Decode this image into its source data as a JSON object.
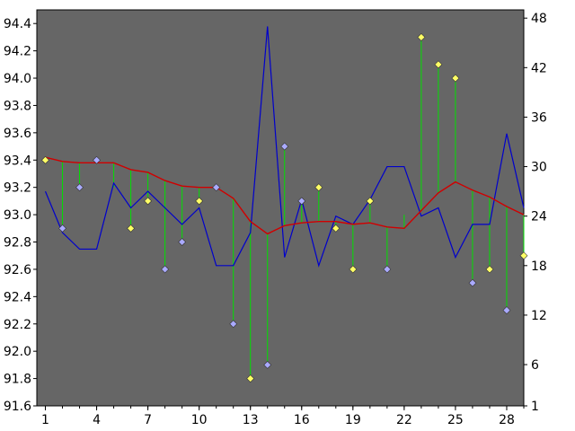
{
  "chart_data": {
    "type": "line",
    "title": "",
    "xlabel": "",
    "ylabel": "",
    "x": [
      1,
      2,
      3,
      4,
      5,
      6,
      7,
      8,
      9,
      10,
      11,
      12,
      13,
      14,
      15,
      16,
      17,
      18,
      19,
      20,
      21,
      22,
      23,
      24,
      25,
      26,
      27,
      28,
      29
    ],
    "xlim": [
      0.5,
      29
    ],
    "x_ticks": [
      1,
      4,
      7,
      10,
      13,
      16,
      19,
      22,
      25,
      28
    ],
    "x_tick_labels": [
      "1",
      "4",
      "7",
      "10",
      "13",
      "16",
      "19",
      "22",
      "25",
      "28"
    ],
    "y_left": {
      "lim": [
        91.6,
        94.5
      ],
      "ticks": [
        91.6,
        91.8,
        92.0,
        92.2,
        92.4,
        92.6,
        92.8,
        93.0,
        93.2,
        93.4,
        93.6,
        93.8,
        94.0,
        94.2,
        94.4
      ],
      "tick_labels": [
        "91.6",
        "91.8",
        "92.0",
        "92.2",
        "92.4",
        "92.6",
        "92.8",
        "93.0",
        "93.2",
        "93.4",
        "93.6",
        "93.8",
        "94.0",
        "94.2",
        "94.4"
      ]
    },
    "y_right": {
      "lim": [
        1,
        49
      ],
      "ticks": [
        1,
        6,
        12,
        18,
        24,
        30,
        36,
        42,
        48
      ],
      "tick_labels": [
        "1",
        "6",
        "12",
        "18",
        "24",
        "30",
        "36",
        "42",
        "48"
      ]
    },
    "grid": false,
    "colors": {
      "plot_bg": "#666666",
      "blue_line": "#0000cc",
      "red_line": "#d00000",
      "green_stem": "#00e000",
      "yellow_marker": "#ffff66",
      "violet_marker": "#aaaaff",
      "marker_edge": "#333333"
    },
    "series": [
      {
        "axis": "right",
        "render": "line",
        "values": [
          27,
          22,
          20,
          20,
          28,
          25,
          27,
          25,
          23,
          25,
          18,
          18,
          22,
          47,
          19,
          26,
          18,
          24,
          23,
          26,
          30,
          30,
          24,
          25,
          19,
          23,
          23,
          34,
          25
        ]
      },
      {
        "axis": "left",
        "render": "line",
        "values": [
          93.42,
          93.39,
          93.38,
          93.38,
          93.38,
          93.33,
          93.31,
          93.25,
          93.21,
          93.2,
          93.2,
          93.12,
          92.95,
          92.86,
          92.92,
          92.94,
          92.95,
          92.95,
          92.93,
          92.94,
          92.91,
          92.9,
          93.03,
          93.16,
          93.24,
          93.18,
          93.13,
          93.06,
          93.0
        ]
      },
      {
        "axis": "left",
        "render": "markers-stems",
        "values": [
          93.4,
          92.9,
          93.2,
          93.4,
          93.2,
          92.9,
          93.1,
          92.6,
          92.8,
          93.1,
          93.2,
          92.2,
          91.8,
          91.9,
          93.5,
          93.1,
          93.2,
          92.9,
          92.6,
          93.1,
          92.6,
          93.0,
          94.3,
          94.1,
          94.0,
          92.5,
          92.6,
          92.3,
          92.7
        ],
        "marker_color": [
          "yellow",
          "violet",
          "violet",
          "violet",
          "none",
          "yellow",
          "yellow",
          "violet",
          "violet",
          "yellow",
          "violet",
          "violet",
          "yellow",
          "violet",
          "violet",
          "violet",
          "yellow",
          "yellow",
          "yellow",
          "yellow",
          "violet",
          "none",
          "yellow",
          "yellow",
          "yellow",
          "violet",
          "yellow",
          "violet",
          "yellow"
        ]
      }
    ]
  }
}
